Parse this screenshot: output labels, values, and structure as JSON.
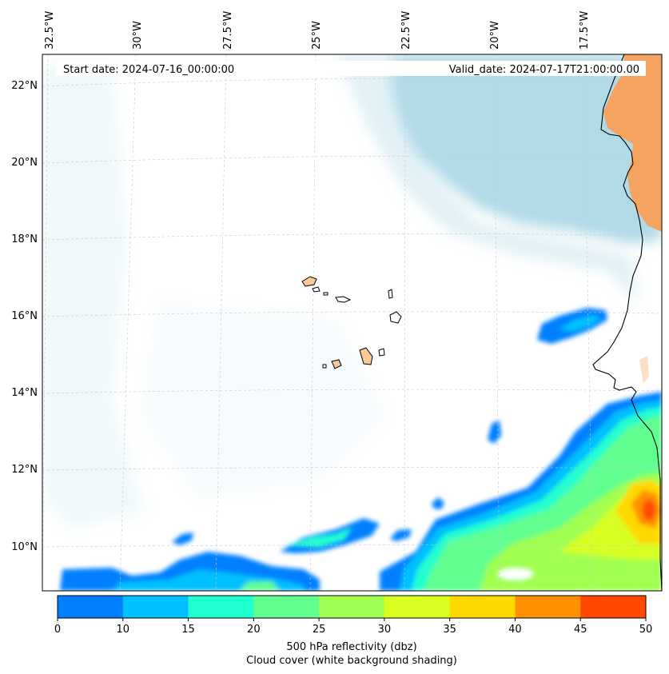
{
  "header": {
    "start_date": "Start date: 2024-07-16_00:00:00",
    "valid_date": "Valid_date: 2024-07-17T21:00:00.00"
  },
  "longitude_labels": [
    "32.5°W",
    "30°W",
    "27.5°W",
    "25°W",
    "22.5°W",
    "20°W",
    "17.5°W"
  ],
  "latitude_labels": [
    "22°N",
    "20°N",
    "18°N",
    "16°N",
    "14°N",
    "12°N",
    "10°N"
  ],
  "colorbar": {
    "ticks": [
      "0",
      "10",
      "15",
      "20",
      "25",
      "30",
      "35",
      "40",
      "45",
      "50"
    ],
    "colors": [
      "#0080ff",
      "#00c0ff",
      "#20ffd0",
      "#60ff90",
      "#a0ff50",
      "#d8ff20",
      "#ffd800",
      "#ff9000",
      "#ff4800"
    ],
    "label_line1": "500 hPa reflectivity (dbz)",
    "label_line2": "Cloud cover (white background shading)"
  },
  "colors": {
    "cloud": "#add8e6",
    "land_orange": "#f4a460",
    "island_fill": "#f9c89b",
    "gridline": "#c8c8c8"
  }
}
